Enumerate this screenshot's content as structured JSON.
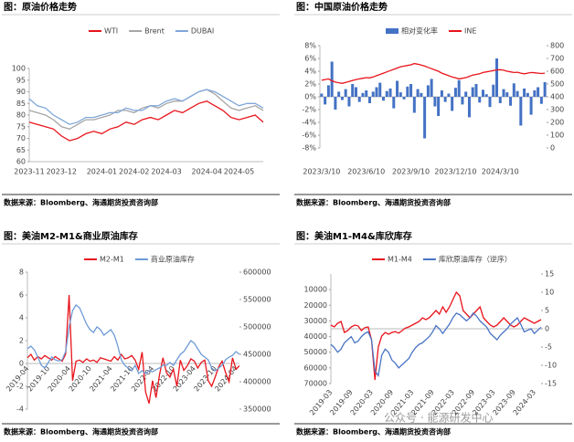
{
  "chart_data": [
    {
      "type": "line",
      "title": "图：原油价格走势",
      "source": "数据来源：Bloomberg、海通期货投资咨询部",
      "categories": [
        "2023-11",
        null,
        null,
        null,
        "2023-12",
        null,
        null,
        null,
        null,
        "2024-01",
        null,
        null,
        null,
        "2024-02",
        null,
        null,
        null,
        "2024-03",
        null,
        null,
        null,
        null,
        "2024-04",
        null,
        null,
        null,
        "2024-05",
        null,
        null,
        null
      ],
      "series": [
        {
          "name": "WTI",
          "color": "#e8141c",
          "values": [
            77,
            76,
            75,
            74,
            71,
            69,
            70,
            72,
            73,
            72,
            74,
            75,
            77,
            76,
            78,
            79,
            78,
            80,
            82,
            81,
            83,
            85,
            86,
            84,
            82,
            79,
            78,
            79,
            80,
            77
          ]
        },
        {
          "name": "Brent",
          "color": "#a6a6a6",
          "values": [
            82,
            81,
            80,
            78,
            75,
            74,
            76,
            78,
            78,
            79,
            80,
            82,
            82,
            81,
            83,
            84,
            83,
            85,
            86,
            86,
            88,
            90,
            91,
            89,
            86,
            83,
            82,
            83,
            84,
            82
          ]
        },
        {
          "name": "DUBAI",
          "color": "#7fa7d9",
          "values": [
            87,
            84,
            83,
            80,
            78,
            76,
            77,
            79,
            79,
            80,
            81,
            81,
            83,
            82,
            82,
            84,
            84,
            86,
            87,
            86,
            88,
            90,
            91,
            90,
            88,
            86,
            84,
            85,
            85,
            83
          ]
        }
      ],
      "ylim": [
        60,
        100
      ],
      "yticks": [
        60,
        65,
        70,
        75,
        80,
        85,
        90,
        95,
        100
      ]
    },
    {
      "type": "combo",
      "title": "图：中国原油价格走势",
      "source": "数据来源：Bloomberg、海通期货投资咨询部",
      "categories": [
        "2023/3/10",
        null,
        null,
        null,
        null,
        null,
        null,
        null,
        null,
        null,
        null,
        null,
        null,
        "2023/6/10",
        null,
        null,
        null,
        null,
        null,
        null,
        null,
        null,
        null,
        null,
        null,
        null,
        "2023/9/10",
        null,
        null,
        null,
        null,
        null,
        null,
        null,
        null,
        null,
        null,
        null,
        null,
        "2023/12/10",
        null,
        null,
        null,
        null,
        null,
        null,
        null,
        null,
        null,
        null,
        null,
        null,
        "2024/3/10",
        null,
        null,
        null,
        null,
        null,
        null,
        null,
        null,
        null,
        null,
        null,
        null,
        null
      ],
      "series": [
        {
          "name": "相对变化率",
          "type": "bar",
          "color": "#4472c4",
          "values": [
            0.5,
            -1.2,
            1.8,
            5.5,
            -2.0,
            0.8,
            -0.5,
            1.2,
            -1.5,
            2.0,
            1.5,
            -0.8,
            0.6,
            1.0,
            -1.0,
            0.8,
            1.5,
            2.2,
            -0.6,
            0.9,
            1.3,
            -1.8,
            2.5,
            0.7,
            -0.4,
            1.6,
            2.0,
            -2.5,
            1.2,
            0.6,
            -6.5,
            1.8,
            2.8,
            -1.5,
            -3.0,
            1.0,
            -0.8,
            0.5,
            -2.2,
            1.4,
            2.6,
            -1.2,
            0.8,
            -3.2,
            1.5,
            2.0,
            -0.9,
            1.1,
            0.4,
            -1.6,
            1.9,
            6.0,
            -1.0,
            1.2,
            0.7,
            -1.4,
            2.1,
            0.9,
            -4.5,
            1.3,
            0.6,
            -2.8,
            1.0,
            1.5,
            -1.1,
            2.3
          ]
        },
        {
          "name": "INE",
          "type": "line",
          "axis": "y2",
          "color": "#e8141c",
          "values": [
            530,
            535,
            540,
            525,
            515,
            510,
            505,
            512,
            520,
            528,
            535,
            540,
            545,
            550,
            548,
            555,
            565,
            575,
            585,
            595,
            605,
            615,
            625,
            635,
            640,
            645,
            650,
            660,
            655,
            648,
            640,
            630,
            620,
            610,
            600,
            585,
            575,
            565,
            555,
            548,
            540,
            545,
            550,
            560,
            570,
            575,
            580,
            590,
            595,
            600,
            605,
            610,
            612,
            608,
            600,
            595,
            590,
            592,
            585,
            580,
            585,
            590,
            588,
            585,
            582,
            585
          ]
        }
      ],
      "ylim": [
        -8,
        8
      ],
      "yticks": [
        {
          "value": -8,
          "label": "-8%"
        },
        {
          "value": -6,
          "label": "-6%"
        },
        {
          "value": -4,
          "label": "-4%"
        },
        {
          "value": -2,
          "label": "-2%"
        },
        {
          "value": 0,
          "label": "0%"
        },
        {
          "value": 2,
          "label": "2%"
        },
        {
          "value": 4,
          "label": "4%"
        },
        {
          "value": 6,
          "label": "6%"
        },
        {
          "value": 8,
          "label": "8%"
        }
      ],
      "y2lim": [
        0,
        800
      ],
      "y2ticks": [
        0,
        100,
        200,
        300,
        400,
        500,
        600,
        700,
        800
      ]
    },
    {
      "type": "line",
      "title": "图：美油M2-M1&商业原油库存",
      "source": "数据来源：Bloomberg、海通期货投资咨询部",
      "categories": [
        "2019-04",
        null,
        null,
        null,
        null,
        null,
        "2019-10",
        null,
        null,
        null,
        null,
        null,
        "2020-04",
        null,
        null,
        null,
        null,
        null,
        "2020-10",
        null,
        null,
        null,
        null,
        null,
        "2021-04",
        null,
        null,
        null,
        null,
        null,
        "2021-10",
        null,
        null,
        null,
        null,
        null,
        "2022-04",
        null,
        null,
        null,
        null,
        null,
        "2022-10",
        null,
        null,
        null,
        null,
        null,
        "2023-04",
        null,
        null,
        null,
        null,
        null,
        "2023-10",
        null,
        null,
        null,
        null,
        null,
        "2024-04",
        null
      ],
      "series": [
        {
          "name": "M2-M1",
          "color": "#e8141c",
          "values": [
            0.5,
            0.8,
            0.3,
            0.6,
            0.4,
            0.7,
            0.5,
            0.3,
            0.6,
            0.4,
            0.2,
            0.8,
            6.0,
            -1.5,
            0.2,
            0.3,
            0.1,
            0.4,
            0.2,
            0.3,
            0.1,
            0.5,
            0.4,
            0.3,
            0.2,
            0.6,
            0.3,
            0.8,
            0.4,
            0.5,
            0.7,
            0.3,
            -0.5,
            1.0,
            -2.5,
            -3.5,
            -1.5,
            -3.0,
            -1.0,
            0.5,
            -0.8,
            -1.2,
            -0.5,
            -2.0,
            0.3,
            -0.6,
            -0.2,
            0.4,
            0.2,
            -0.4,
            0.1,
            0.3,
            -1.5,
            -2.0,
            -1.2,
            -0.3,
            0.2,
            -0.8,
            -1.6,
            0.5,
            -0.5,
            -0.2
          ]
        },
        {
          "name": "商业原油库存",
          "axis": "y2",
          "color": "#6f9bd6",
          "values": [
            460000,
            465000,
            458000,
            445000,
            430000,
            425000,
            435000,
            445000,
            440000,
            438000,
            440000,
            455000,
            500000,
            530000,
            540000,
            535000,
            520000,
            505000,
            495000,
            490000,
            500000,
            495000,
            485000,
            490000,
            495000,
            485000,
            465000,
            440000,
            430000,
            425000,
            420000,
            430000,
            415000,
            420000,
            415000,
            420000,
            418000,
            422000,
            425000,
            430000,
            430000,
            435000,
            430000,
            440000,
            450000,
            455000,
            465000,
            475000,
            470000,
            460000,
            450000,
            445000,
            440000,
            425000,
            420000,
            425000,
            430000,
            440000,
            445000,
            448000,
            455000,
            450000
          ]
        }
      ],
      "ylim": [
        -4,
        8
      ],
      "yticks": [
        -4,
        -2,
        0,
        2,
        4,
        6,
        8
      ],
      "y2lim": [
        350000,
        600000
      ],
      "y2ticks": [
        350000,
        400000,
        450000,
        500000,
        550000,
        600000
      ]
    },
    {
      "type": "line",
      "title": "图：美油M1-M4&库欣库存",
      "source": "数据来源：Bloomberg、海通期货投资咨询部",
      "categories": [
        "2019-03",
        null,
        null,
        null,
        null,
        null,
        "2019-09",
        null,
        null,
        null,
        null,
        null,
        "2020-03",
        null,
        null,
        null,
        null,
        null,
        "2020-09",
        null,
        null,
        null,
        null,
        null,
        "2021-03",
        null,
        null,
        null,
        null,
        null,
        "2021-09",
        null,
        null,
        null,
        null,
        null,
        "2022-03",
        null,
        null,
        null,
        null,
        null,
        "2022-09",
        null,
        null,
        null,
        null,
        null,
        "2023-03",
        null,
        null,
        null,
        null,
        null,
        "2023-09",
        null,
        null,
        null,
        null,
        null,
        "2024-03",
        null,
        null
      ],
      "series": [
        {
          "name": "M1-M4",
          "axis": "y2",
          "color": "#e8141c",
          "values": [
            1,
            0.5,
            1.5,
            2,
            -1,
            -0.5,
            0.5,
            1,
            0.8,
            -0.5,
            0.3,
            0.5,
            -3,
            -14,
            -5,
            -2,
            -1,
            -1.5,
            -1,
            -0.8,
            -1.2,
            -0.5,
            0.2,
            0.5,
            1,
            1.5,
            2,
            3,
            2.5,
            3,
            4,
            5,
            4,
            6,
            4.5,
            6,
            8,
            10,
            9,
            5,
            4,
            3,
            4,
            5,
            6,
            3,
            2,
            1,
            0.5,
            1,
            2,
            3,
            2,
            1,
            0.5,
            1,
            2,
            3,
            2.5,
            2,
            1.5,
            2,
            2.5
          ]
        },
        {
          "name": "库欣原油库存（逆序）",
          "color": "#4a74c4",
          "values": [
            45000,
            47000,
            50000,
            48000,
            44000,
            42000,
            40000,
            44000,
            43000,
            40000,
            38000,
            37000,
            42000,
            62000,
            65000,
            52000,
            48000,
            50000,
            55000,
            57000,
            60000,
            58000,
            56000,
            54000,
            50000,
            47000,
            45000,
            44000,
            42000,
            40000,
            37000,
            33000,
            35000,
            38000,
            35000,
            32000,
            28000,
            25000,
            26000,
            28000,
            30000,
            28000,
            25000,
            27000,
            30000,
            32000,
            34000,
            38000,
            40000,
            42000,
            39000,
            37000,
            35000,
            32000,
            30000,
            28000,
            32000,
            37000,
            36000,
            35000,
            38000,
            36000,
            34000
          ]
        }
      ],
      "ylim": [
        0,
        70000
      ],
      "y_reversed": true,
      "yticks": [
        10000,
        20000,
        30000,
        40000,
        50000,
        60000,
        70000
      ],
      "y2lim": [
        -15,
        15
      ],
      "y2ticks": [
        -15,
        -10,
        -5,
        0,
        5,
        10,
        15
      ]
    }
  ],
  "watermark": "公众号 · 能源研发中心"
}
